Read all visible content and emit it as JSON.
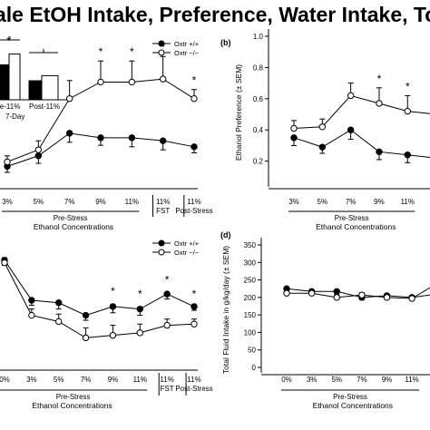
{
  "figure": {
    "title": "ale EtOH Intake, Preference, Water Intake, Total In"
  },
  "inset": {
    "labels": [
      "ie-11%",
      "Post-11%"
    ],
    "sublabel": "7-Day",
    "values_pre": [
      0.55,
      0.3
    ],
    "values_post": [
      0.72,
      0.38
    ]
  },
  "chart_data": [
    {
      "panel": "a",
      "type": "line",
      "categories": [
        "3%",
        "5%",
        "7%",
        "9%",
        "11%",
        "11% FST",
        "11% Post-Stress"
      ],
      "xlabel": "Ethanol Concentrations",
      "group_label": "Pre-Stress",
      "ylabel": "",
      "ylim": [
        0,
        10
      ],
      "series": [
        {
          "name": "Oxtr +/+",
          "marker": "filled",
          "values": [
            1.0,
            1.7,
            3.2,
            2.9,
            2.9,
            2.7,
            2.3
          ],
          "err": [
            0.4,
            0.5,
            0.6,
            0.5,
            0.6,
            0.6,
            0.4
          ]
        },
        {
          "name": "Oxtr −/−",
          "marker": "open",
          "values": [
            1.3,
            2.1,
            5.5,
            6.6,
            6.6,
            6.8,
            5.5
          ],
          "err": [
            0.4,
            0.6,
            1.2,
            1.4,
            1.4,
            1.5,
            0.6
          ]
        }
      ],
      "significance": [
        "",
        "",
        "",
        "*",
        "*",
        "*",
        "*"
      ]
    },
    {
      "panel": "b",
      "type": "line",
      "categories": [
        "3%",
        "5%",
        "7%",
        "9%",
        "11%",
        ""
      ],
      "xlabel": "Ethanol Concentrations",
      "group_label": "Pre-Stress",
      "ylabel": "Ethanol Preference (± SEM)",
      "ylim": [
        0.07,
        1.0
      ],
      "yticks": [
        0.2,
        0.4,
        0.6,
        0.8,
        1.0
      ],
      "series": [
        {
          "name": "Oxtr +/+",
          "marker": "filled",
          "values": [
            0.35,
            0.29,
            0.4,
            0.26,
            0.24,
            0.22
          ],
          "err": [
            0.05,
            0.04,
            0.06,
            0.05,
            0.05,
            0.05
          ]
        },
        {
          "name": "Oxtr −/−",
          "marker": "open",
          "values": [
            0.41,
            0.42,
            0.62,
            0.57,
            0.52,
            0.5
          ],
          "err": [
            0.05,
            0.05,
            0.08,
            0.1,
            0.1,
            0.1
          ]
        }
      ],
      "significance": [
        "",
        "",
        "",
        "*",
        "*",
        "*"
      ]
    },
    {
      "panel": "c",
      "type": "line",
      "categories": [
        "0%",
        "3%",
        "5%",
        "7%",
        "9%",
        "11%",
        "11% FST",
        "11% Post-Stress"
      ],
      "xlabel": "Ethanol Concentrations",
      "group_label": "Pre-Stress",
      "ylabel": "",
      "ylim": [
        0,
        10
      ],
      "series": [
        {
          "name": "Oxtr +/+",
          "marker": "filled",
          "values": [
            8.2,
            5.0,
            4.8,
            3.8,
            4.5,
            4.3,
            5.5,
            4.5
          ],
          "err": [
            0.4,
            0.4,
            0.5,
            0.4,
            0.5,
            0.5,
            0.4,
            0.3
          ]
        },
        {
          "name": "Oxtr −/−",
          "marker": "open",
          "values": [
            8.0,
            3.8,
            3.3,
            2.0,
            2.2,
            2.4,
            3.0,
            3.1
          ],
          "err": [
            0.4,
            0.5,
            0.6,
            0.8,
            0.8,
            0.7,
            0.5,
            0.4
          ]
        }
      ],
      "significance": [
        "",
        "",
        "",
        "",
        "*",
        "*",
        "*",
        "*"
      ]
    },
    {
      "panel": "d",
      "type": "line",
      "categories": [
        "0%",
        "3%",
        "5%",
        "7%",
        "9%",
        "11%",
        ""
      ],
      "xlabel": "Ethanol Concentrations",
      "group_label": "Pre-Stress",
      "ylabel": "Total Fluid Intake in g/kg/day (± SEM)",
      "ylim": [
        0,
        350
      ],
      "yticks": [
        0,
        50,
        100,
        150,
        200,
        250,
        300,
        350
      ],
      "series": [
        {
          "name": "Oxtr +/+",
          "marker": "filled",
          "values": [
            225,
            217,
            217,
            200,
            205,
            200,
            210
          ],
          "err": [
            10,
            9,
            9,
            6,
            6,
            6,
            6
          ]
        },
        {
          "name": "Oxtr −/−",
          "marker": "open",
          "values": [
            212,
            212,
            200,
            207,
            200,
            197,
            240
          ],
          "err": [
            8,
            9,
            7,
            6,
            6,
            7,
            10
          ]
        }
      ],
      "significance": [
        "",
        "",
        "",
        "",
        "",
        "",
        ""
      ]
    }
  ],
  "panel_labels": {
    "b": "(b)",
    "d": "(d)"
  },
  "legend": {
    "a": [
      "Oxtr +/+",
      "Oxtr −/−"
    ],
    "c": [
      "Oxtr +/+",
      "Oxtr −/−"
    ]
  }
}
